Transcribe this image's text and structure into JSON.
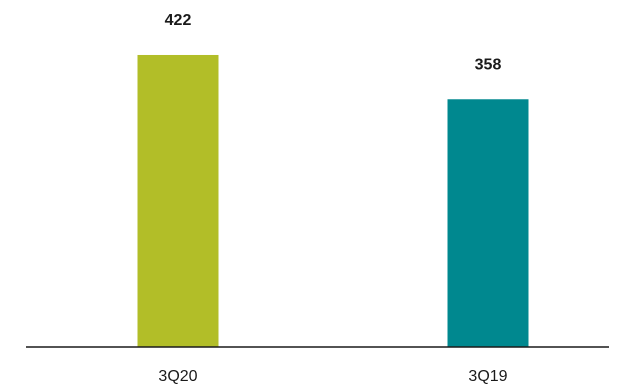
{
  "chart_data": {
    "type": "bar",
    "categories": [
      "3Q20",
      "3Q19"
    ],
    "values": [
      422,
      358
    ],
    "colors": [
      "#b2be28",
      "#00888f"
    ],
    "ylim": [
      0,
      500
    ],
    "grid": false,
    "title": "",
    "xlabel": "",
    "ylabel": ""
  }
}
